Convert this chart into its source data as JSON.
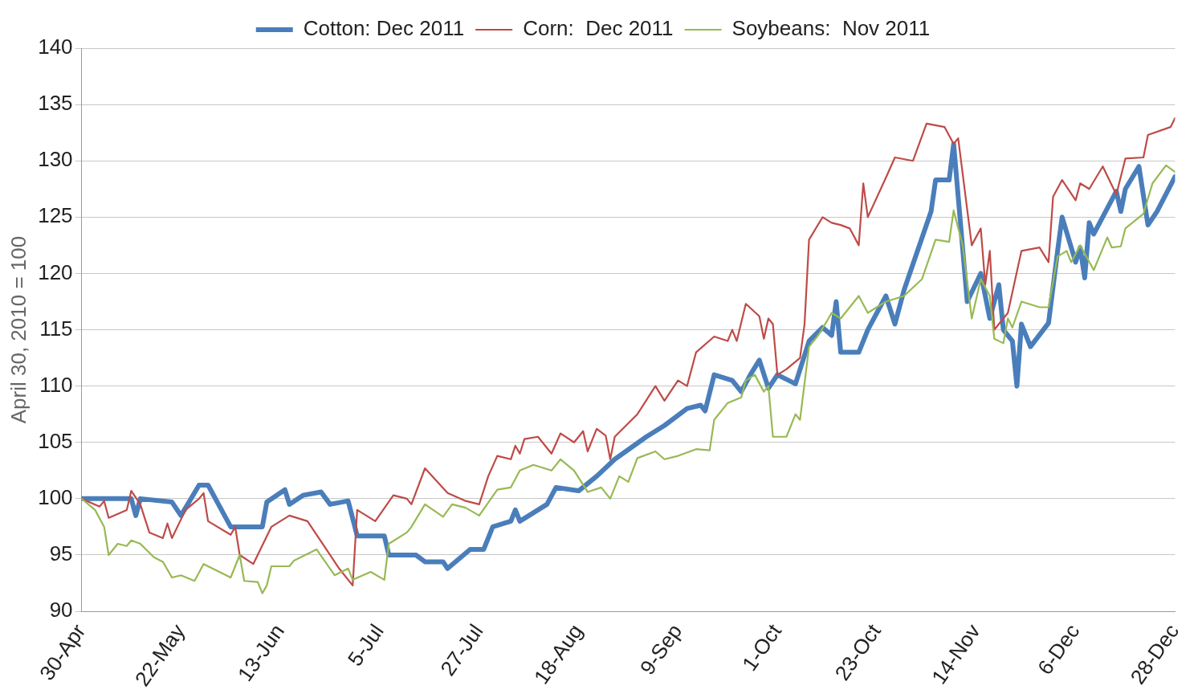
{
  "chart_data": {
    "type": "line",
    "ylabel": "April 30, 2010 = 100",
    "legend": "top",
    "grid": "y",
    "marker": "none",
    "line_style": "solid",
    "xlim": [
      "--04-30",
      "--12-28"
    ],
    "xticks": [
      {
        "value": "--04-30",
        "label": "30-Apr"
      },
      {
        "value": "--05-22",
        "label": "22-May"
      },
      {
        "value": "--06-13",
        "label": "13-Jun"
      },
      {
        "value": "--07-05",
        "label": "5-Jul"
      },
      {
        "value": "--07-27",
        "label": "27-Jul"
      },
      {
        "value": "--08-18",
        "label": "18-Aug"
      },
      {
        "value": "--09-09",
        "label": "9-Sep"
      },
      {
        "value": "--10-01",
        "label": "1-Oct"
      },
      {
        "value": "--10-23",
        "label": "23-Oct"
      },
      {
        "value": "--11-14",
        "label": "14-Nov"
      },
      {
        "value": "--12-06",
        "label": "6-Dec"
      },
      {
        "value": "--12-28",
        "label": "28-Dec"
      }
    ],
    "ylim": [
      90,
      140
    ],
    "yticks": [
      90,
      95,
      100,
      105,
      110,
      115,
      120,
      125,
      130,
      135,
      140
    ],
    "series": [
      {
        "name": "Cotton: Dec 2011",
        "color": "#4a7ebb",
        "x": [
          "--04-30",
          "--05-11",
          "--05-12",
          "--05-13",
          "--05-20",
          "--05-22",
          "--05-26",
          "--05-28",
          "--06-02",
          "--06-09",
          "--06-10",
          "--06-14",
          "--06-15",
          "--06-18",
          "--06-22",
          "--06-24",
          "--06-28",
          "--06-30",
          "--07-06",
          "--07-07",
          "--07-13",
          "--07-15",
          "--07-19",
          "--07-20",
          "--07-25",
          "--07-28",
          "--07-30",
          "--08-03",
          "--08-04",
          "--08-05",
          "--08-11",
          "--08-13",
          "--08-18",
          "--08-22",
          "--08-26",
          "--09-02",
          "--09-06",
          "--09-11",
          "--09-14",
          "--09-15",
          "--09-17",
          "--09-21",
          "--09-23",
          "--09-25",
          "--09-27",
          "--09-29",
          "--10-01",
          "--10-05",
          "--10-08",
          "--10-11",
          "--10-13",
          "--10-14",
          "--10-15",
          "--10-19",
          "--10-21",
          "--10-25",
          "--10-27",
          "--10-29",
          "--11-04",
          "--11-05",
          "--11-08",
          "--11-09",
          "--11-12",
          "--11-15",
          "--11-17",
          "--11-19",
          "--11-20",
          "--11-22",
          "--11-23",
          "--11-24",
          "--11-26",
          "--11-30",
          "--12-02",
          "--12-03",
          "--12-06",
          "--12-07",
          "--12-08",
          "--12-09",
          "--12-10",
          "--12-15",
          "--12-16",
          "--12-17",
          "--12-20",
          "--12-22",
          "--12-24",
          "--12-28"
        ],
        "values": [
          100,
          100,
          98.5,
          100,
          99.7,
          98.5,
          101.2,
          101.2,
          97.5,
          97.5,
          99.7,
          100.8,
          99.5,
          100.3,
          100.6,
          99.5,
          99.8,
          96.7,
          96.7,
          95,
          95,
          94.4,
          94.4,
          93.8,
          95.5,
          95.5,
          97.5,
          98,
          99,
          98,
          99.5,
          101,
          100.7,
          102,
          103.5,
          105.5,
          106.5,
          108,
          108.3,
          107.8,
          111,
          110.5,
          109.5,
          111,
          112.3,
          109.8,
          111,
          110.2,
          114,
          115.2,
          114.5,
          117.5,
          113,
          113,
          115,
          118,
          115.5,
          118.5,
          125.5,
          128.3,
          128.3,
          131.5,
          117.5,
          120,
          116,
          119,
          115,
          114,
          110,
          115.5,
          113.5,
          115.6,
          122,
          125,
          121,
          122.3,
          119.6,
          124.5,
          123.5,
          127.3,
          125.5,
          127.5,
          129.5,
          124.3,
          125.5,
          128.6
        ]
      },
      {
        "name": "Corn:  Dec 2011",
        "color": "#be4b48",
        "x": [
          "--04-30",
          "--05-04",
          "--05-05",
          "--05-06",
          "--05-10",
          "--05-11",
          "--05-13",
          "--05-15",
          "--05-18",
          "--05-19",
          "--05-20",
          "--05-23",
          "--05-26",
          "--05-27",
          "--05-28",
          "--06-02",
          "--06-03",
          "--06-04",
          "--06-07",
          "--06-11",
          "--06-15",
          "--06-19",
          "--06-24",
          "--06-26",
          "--06-29",
          "--06-30",
          "--07-04",
          "--07-08",
          "--07-11",
          "--07-12",
          "--07-15",
          "--07-20",
          "--07-24",
          "--07-27",
          "--07-29",
          "--07-31",
          "--08-03",
          "--08-04",
          "--08-05",
          "--08-06",
          "--08-09",
          "--08-12",
          "--08-14",
          "--08-17",
          "--08-19",
          "--08-20",
          "--08-22",
          "--08-24",
          "--08-25",
          "--08-26",
          "--08-31",
          "--09-04",
          "--09-06",
          "--09-09",
          "--09-11",
          "--09-13",
          "--09-17",
          "--09-20",
          "--09-21",
          "--09-22",
          "--09-24",
          "--09-27",
          "--09-28",
          "--09-29",
          "--09-30",
          "--10-01",
          "--10-03",
          "--10-06",
          "--10-07",
          "--10-08",
          "--10-11",
          "--10-13",
          "--10-15",
          "--10-17",
          "--10-19",
          "--10-20",
          "--10-21",
          "--10-25",
          "--10-27",
          "--10-31",
          "--11-03",
          "--11-07",
          "--11-09",
          "--11-10",
          "--11-13",
          "--11-15",
          "--11-16",
          "--11-17",
          "--11-18",
          "--11-21",
          "--11-24",
          "--11-28",
          "--11-30",
          "--12-01",
          "--12-03",
          "--12-06",
          "--12-07",
          "--12-09",
          "--12-12",
          "--12-15",
          "--12-17",
          "--12-21",
          "--12-22",
          "--12-27",
          "--12-28"
        ],
        "values": [
          100,
          99.3,
          99.8,
          98.3,
          99,
          100.7,
          99.5,
          97,
          96.5,
          97.8,
          96.5,
          99,
          100,
          100.5,
          98,
          96.8,
          97.5,
          95,
          94.2,
          97.5,
          98.5,
          98,
          95,
          93.8,
          92.3,
          99,
          98,
          100.3,
          100,
          99.5,
          102.7,
          100.5,
          99.8,
          99.5,
          102,
          103.8,
          103.5,
          104.7,
          104,
          105.3,
          105.5,
          104,
          105.8,
          105,
          106,
          104.2,
          106.2,
          105.6,
          103.5,
          105.5,
          107.5,
          110,
          108.7,
          110.5,
          110,
          113,
          114.4,
          114,
          115,
          114,
          117.3,
          116.2,
          114.2,
          116,
          115.5,
          111,
          111.5,
          112.5,
          115.5,
          123,
          125,
          124.5,
          124.3,
          124,
          122.5,
          128,
          125,
          128.5,
          130.3,
          130,
          133.3,
          133,
          131.5,
          132,
          122.5,
          124,
          119,
          122,
          115,
          116.5,
          122,
          122.3,
          121,
          126.8,
          128.3,
          126.5,
          128,
          127.5,
          129.5,
          127,
          130.2,
          130.3,
          132.3,
          133,
          133.8
        ]
      },
      {
        "name": "Soybeans:  Nov 2011",
        "color": "#98b954",
        "x": [
          "--04-30",
          "--05-03",
          "--05-05",
          "--05-06",
          "--05-08",
          "--05-10",
          "--05-11",
          "--05-13",
          "--05-16",
          "--05-18",
          "--05-20",
          "--05-22",
          "--05-25",
          "--05-27",
          "--06-02",
          "--06-04",
          "--06-05",
          "--06-08",
          "--06-09",
          "--06-10",
          "--06-11",
          "--06-15",
          "--06-16",
          "--06-21",
          "--06-25",
          "--06-28",
          "--06-29",
          "--07-03",
          "--07-06",
          "--07-07",
          "--07-11",
          "--07-12",
          "--07-15",
          "--07-19",
          "--07-21",
          "--07-24",
          "--07-27",
          "--07-31",
          "--08-03",
          "--08-05",
          "--08-08",
          "--08-12",
          "--08-14",
          "--08-17",
          "--08-20",
          "--08-23",
          "--08-25",
          "--08-27",
          "--08-29",
          "--08-31",
          "--09-04",
          "--09-06",
          "--09-09",
          "--09-13",
          "--09-16",
          "--09-17",
          "--09-20",
          "--09-23",
          "--09-24",
          "--09-26",
          "--09-28",
          "--09-29",
          "--09-30",
          "--10-03",
          "--10-05",
          "--10-06",
          "--10-08",
          "--10-10",
          "--10-12",
          "--10-13",
          "--10-15",
          "--10-19",
          "--10-21",
          "--10-25",
          "--10-29",
          "--11-02",
          "--11-05",
          "--11-08",
          "--11-09",
          "--11-11",
          "--11-13",
          "--11-15",
          "--11-17",
          "--11-18",
          "--11-20",
          "--11-21",
          "--11-22",
          "--11-24",
          "--11-28",
          "--11-30",
          "--12-02",
          "--12-04",
          "--12-05",
          "--12-07",
          "--12-10",
          "--12-13",
          "--12-14",
          "--12-16",
          "--12-17",
          "--12-21",
          "--12-23",
          "--12-26",
          "--12-28"
        ],
        "values": [
          100,
          99,
          97.5,
          95,
          96,
          95.8,
          96.3,
          96,
          94.8,
          94.4,
          93,
          93.2,
          92.7,
          94.2,
          93,
          95,
          92.7,
          92.6,
          91.6,
          92.3,
          94,
          94,
          94.5,
          95.5,
          93.2,
          93.8,
          92.8,
          93.5,
          92.8,
          96,
          97,
          97.5,
          99.5,
          98.4,
          99.5,
          99.2,
          98.5,
          100.8,
          101,
          102.5,
          103,
          102.5,
          103.5,
          102.5,
          100.6,
          101,
          100,
          102,
          101.5,
          103.6,
          104.2,
          103.5,
          103.8,
          104.4,
          104.3,
          107,
          108.5,
          109,
          110.5,
          111,
          109.5,
          110,
          105.5,
          105.5,
          107.5,
          107,
          113.5,
          114.5,
          115.8,
          116.5,
          116,
          118,
          116.5,
          117.5,
          118,
          119.5,
          123,
          122.8,
          125.6,
          122.5,
          116,
          119.5,
          118,
          114.2,
          113.8,
          116,
          115.2,
          117.5,
          117,
          117,
          121.5,
          122,
          121,
          122.5,
          120.3,
          123.2,
          122.3,
          122.4,
          124,
          125.3,
          128,
          129.6,
          129
        ]
      }
    ]
  }
}
